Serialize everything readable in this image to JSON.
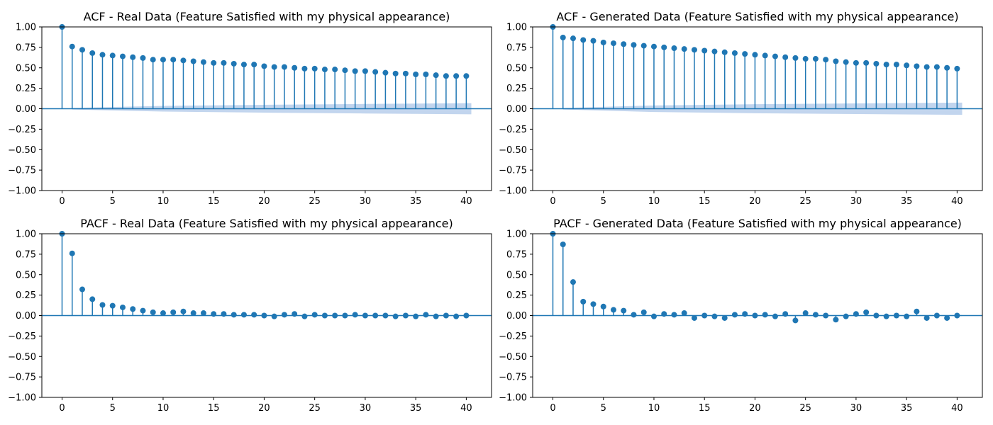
{
  "colors": {
    "stem": "#1f77b4",
    "band": "#aec7e8",
    "axis": "#000000"
  },
  "chart_data": [
    {
      "type": "stem",
      "title": "ACF - Real Data (Feature Satisfied with my physical appearance)",
      "xlim": [
        -2,
        42.5
      ],
      "ylim": [
        -1.0,
        1.0
      ],
      "xticks": [
        0,
        5,
        10,
        15,
        20,
        25,
        30,
        35,
        40
      ],
      "yticks": [
        1.0,
        0.75,
        0.5,
        0.25,
        0.0,
        -0.25,
        -0.5,
        -0.75,
        -1.0
      ],
      "ytick_labels": [
        "1.00",
        "0.75",
        "0.50",
        "0.25",
        "0.00",
        "−0.25",
        "−0.50",
        "−0.75",
        "−1.00"
      ],
      "lags": [
        0,
        1,
        2,
        3,
        4,
        5,
        6,
        7,
        8,
        9,
        10,
        11,
        12,
        13,
        14,
        15,
        16,
        17,
        18,
        19,
        20,
        21,
        22,
        23,
        24,
        25,
        26,
        27,
        28,
        29,
        30,
        31,
        32,
        33,
        34,
        35,
        36,
        37,
        38,
        39,
        40
      ],
      "values": [
        1.0,
        0.76,
        0.72,
        0.68,
        0.66,
        0.65,
        0.64,
        0.63,
        0.62,
        0.6,
        0.6,
        0.6,
        0.59,
        0.58,
        0.57,
        0.56,
        0.56,
        0.55,
        0.54,
        0.54,
        0.52,
        0.51,
        0.51,
        0.5,
        0.49,
        0.49,
        0.48,
        0.48,
        0.47,
        0.46,
        0.46,
        0.45,
        0.44,
        0.43,
        0.43,
        0.42,
        0.42,
        0.41,
        0.4,
        0.4,
        0.4
      ],
      "confidence_band": {
        "lags": [
          1,
          10,
          20,
          30,
          40.5
        ],
        "half_width": [
          0.01,
          0.035,
          0.048,
          0.058,
          0.068
        ]
      }
    },
    {
      "type": "stem",
      "title": "ACF - Generated Data (Feature Satisfied with my physical appearance)",
      "xlim": [
        -2,
        42.5
      ],
      "ylim": [
        -1.0,
        1.0
      ],
      "xticks": [
        0,
        5,
        10,
        15,
        20,
        25,
        30,
        35,
        40
      ],
      "yticks": [
        1.0,
        0.75,
        0.5,
        0.25,
        0.0,
        -0.25,
        -0.5,
        -0.75,
        -1.0
      ],
      "ytick_labels": [
        "1.00",
        "0.75",
        "0.50",
        "0.25",
        "0.00",
        "−0.25",
        "−0.50",
        "−0.75",
        "−1.00"
      ],
      "lags": [
        0,
        1,
        2,
        3,
        4,
        5,
        6,
        7,
        8,
        9,
        10,
        11,
        12,
        13,
        14,
        15,
        16,
        17,
        18,
        19,
        20,
        21,
        22,
        23,
        24,
        25,
        26,
        27,
        28,
        29,
        30,
        31,
        32,
        33,
        34,
        35,
        36,
        37,
        38,
        39,
        40
      ],
      "values": [
        1.0,
        0.87,
        0.86,
        0.84,
        0.83,
        0.81,
        0.8,
        0.79,
        0.78,
        0.77,
        0.76,
        0.75,
        0.74,
        0.73,
        0.72,
        0.71,
        0.7,
        0.69,
        0.68,
        0.67,
        0.66,
        0.65,
        0.64,
        0.63,
        0.62,
        0.61,
        0.61,
        0.6,
        0.58,
        0.57,
        0.56,
        0.56,
        0.55,
        0.54,
        0.54,
        0.53,
        0.52,
        0.51,
        0.51,
        0.5,
        0.49
      ],
      "confidence_band": {
        "lags": [
          1,
          10,
          20,
          30,
          40.5
        ],
        "half_width": [
          0.01,
          0.04,
          0.055,
          0.065,
          0.075
        ]
      }
    },
    {
      "type": "stem",
      "title": "PACF - Real Data (Feature Satisfied with my physical appearance)",
      "xlim": [
        -2,
        42.5
      ],
      "ylim": [
        -1.0,
        1.0
      ],
      "xticks": [
        0,
        5,
        10,
        15,
        20,
        25,
        30,
        35,
        40
      ],
      "yticks": [
        1.0,
        0.75,
        0.5,
        0.25,
        0.0,
        -0.25,
        -0.5,
        -0.75,
        -1.0
      ],
      "ytick_labels": [
        "1.00",
        "0.75",
        "0.50",
        "0.25",
        "0.00",
        "−0.25",
        "−0.50",
        "−0.75",
        "−1.00"
      ],
      "lags": [
        0,
        1,
        2,
        3,
        4,
        5,
        6,
        7,
        8,
        9,
        10,
        11,
        12,
        13,
        14,
        15,
        16,
        17,
        18,
        19,
        20,
        21,
        22,
        23,
        24,
        25,
        26,
        27,
        28,
        29,
        30,
        31,
        32,
        33,
        34,
        35,
        36,
        37,
        38,
        39,
        40
      ],
      "values": [
        1.0,
        0.76,
        0.32,
        0.2,
        0.13,
        0.12,
        0.1,
        0.08,
        0.06,
        0.04,
        0.03,
        0.04,
        0.05,
        0.03,
        0.03,
        0.02,
        0.02,
        0.01,
        0.01,
        0.01,
        0.0,
        -0.01,
        0.01,
        0.02,
        -0.01,
        0.01,
        0.0,
        0.0,
        0.0,
        0.01,
        0.0,
        0.0,
        0.0,
        -0.01,
        0.0,
        -0.01,
        0.01,
        -0.01,
        0.0,
        -0.01,
        0.0
      ],
      "confidence_band": {
        "lags": [
          0.5,
          40.5
        ],
        "half_width": [
          0.006,
          0.006
        ]
      }
    },
    {
      "type": "stem",
      "title": "PACF - Generated Data (Feature Satisfied with my physical appearance)",
      "xlim": [
        -2,
        42.5
      ],
      "ylim": [
        -1.0,
        1.0
      ],
      "xticks": [
        0,
        5,
        10,
        15,
        20,
        25,
        30,
        35,
        40
      ],
      "yticks": [
        1.0,
        0.75,
        0.5,
        0.25,
        0.0,
        -0.25,
        -0.5,
        -0.75,
        -1.0
      ],
      "ytick_labels": [
        "1.00",
        "0.75",
        "0.50",
        "0.25",
        "0.00",
        "−0.25",
        "−0.50",
        "−0.75",
        "−1.00"
      ],
      "lags": [
        0,
        1,
        2,
        3,
        4,
        5,
        6,
        7,
        8,
        9,
        10,
        11,
        12,
        13,
        14,
        15,
        16,
        17,
        18,
        19,
        20,
        21,
        22,
        23,
        24,
        25,
        26,
        27,
        28,
        29,
        30,
        31,
        32,
        33,
        34,
        35,
        36,
        37,
        38,
        39,
        40
      ],
      "values": [
        1.0,
        0.87,
        0.41,
        0.17,
        0.14,
        0.11,
        0.07,
        0.06,
        0.01,
        0.04,
        -0.01,
        0.02,
        0.01,
        0.03,
        -0.03,
        0.0,
        -0.01,
        -0.03,
        0.01,
        0.02,
        0.0,
        0.01,
        -0.01,
        0.02,
        -0.06,
        0.03,
        0.01,
        0.0,
        -0.05,
        -0.01,
        0.02,
        0.04,
        0.0,
        -0.01,
        0.0,
        -0.01,
        0.05,
        -0.03,
        0.0,
        -0.03,
        0.0
      ],
      "confidence_band": {
        "lags": [
          0.5,
          40.5
        ],
        "half_width": [
          0.006,
          0.006
        ]
      }
    }
  ]
}
